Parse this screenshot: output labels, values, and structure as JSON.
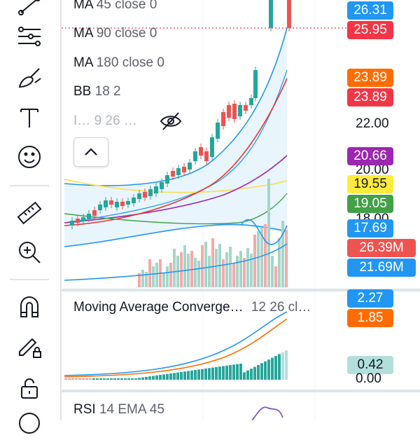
{
  "toolbar": {
    "tools": [
      "trend-line-icon",
      "fib-retracement-icon",
      "brush-icon",
      "text-icon",
      "emoji-icon",
      "ruler-icon",
      "zoom-in-icon",
      "magnet-icon",
      "lock-drawing-icon",
      "unlock-icon"
    ]
  },
  "main_pane": {
    "legend": [
      {
        "name": "MA",
        "params": "45 close 0"
      },
      {
        "name": "MA",
        "params": "90 close 0"
      },
      {
        "name": "MA",
        "params": "180 close 0"
      },
      {
        "name": "BB",
        "params": "18 2"
      },
      {
        "name": "I…",
        "params": "9 26 …"
      }
    ],
    "price_tags": [
      {
        "value": "26.31",
        "color": "#2196f3"
      },
      {
        "value": "25.95",
        "color": "#f23645"
      },
      {
        "value": "23.89",
        "color": "#ff6d00"
      },
      {
        "value": "23.89",
        "color": "#f23645"
      },
      {
        "value": "20.66",
        "color": "#9c27b0"
      },
      {
        "value": "19.55",
        "color": "#ffeb3b",
        "text": "#131722"
      },
      {
        "value": "19.05",
        "color": "#43a047"
      },
      {
        "value": "17.69",
        "color": "#2196f3"
      },
      {
        "value": "26.39M",
        "color": "#ef5350"
      },
      {
        "value": "21.69M",
        "color": "#2196f3"
      }
    ],
    "axis_ticks": [
      "22.00",
      "20.00",
      "18.00"
    ]
  },
  "macd_pane": {
    "title": "Moving Average Converge…",
    "params": "12 26 cl…",
    "tags": [
      {
        "value": "2.27",
        "color": "#2196f3"
      },
      {
        "value": "1.85",
        "color": "#ff6d00"
      },
      {
        "value": "0.42",
        "color": "#b2dfdb",
        "text": "#131722"
      }
    ],
    "axis_ticks": [
      "0.00"
    ]
  },
  "rsi_pane": {
    "name": "RSI",
    "params": "14 EMA 45"
  },
  "colors": {
    "up": "#26a69a",
    "down": "#ef5350",
    "bb_fill": "#e3f2fd"
  }
}
